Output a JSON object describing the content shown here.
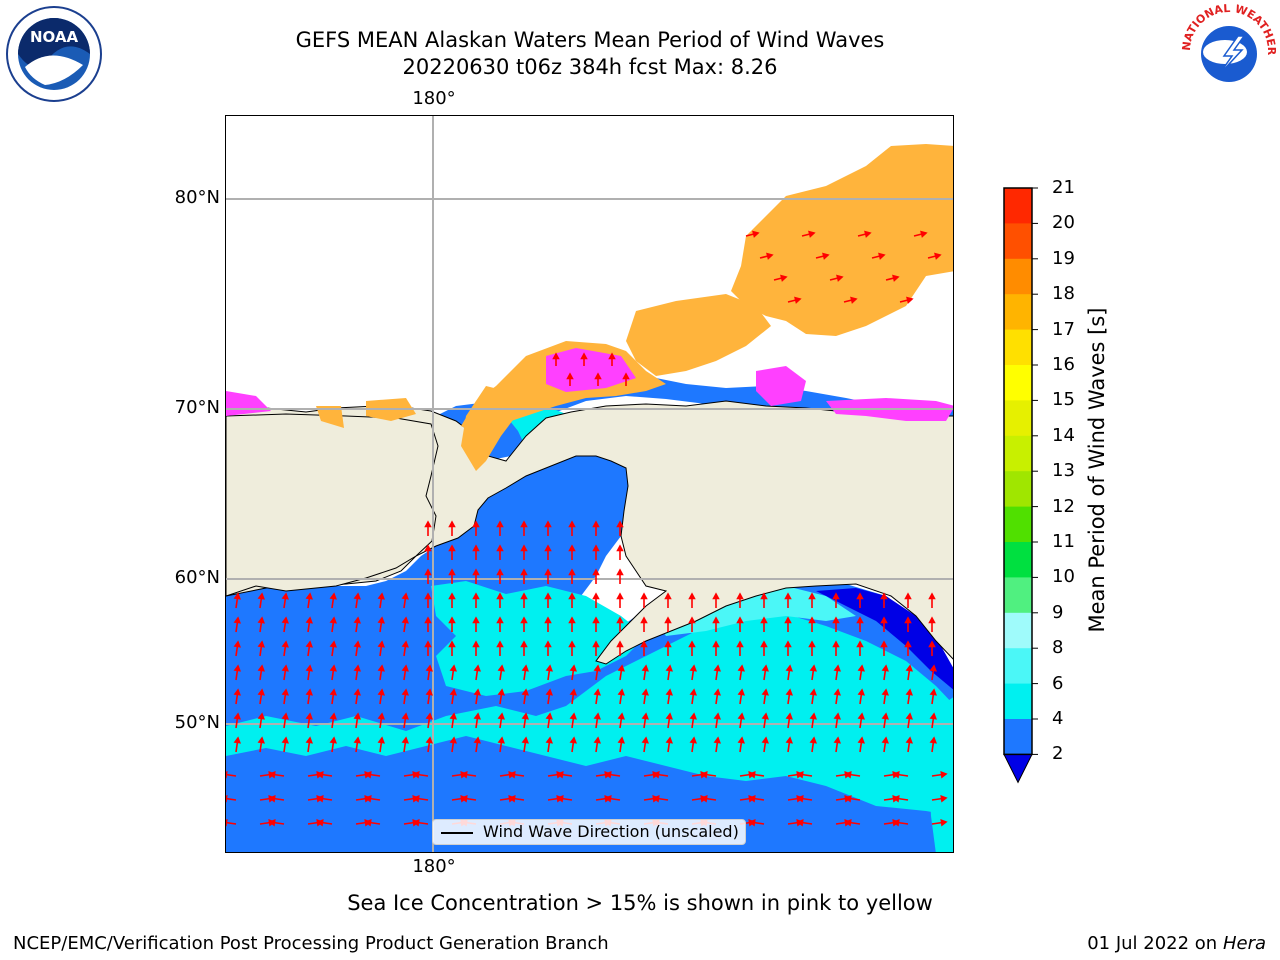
{
  "header": {
    "title_line1": "GEFS MEAN Alaskan Waters Mean Period of Wind Waves",
    "title_line2": "20220630 t06z 384h fcst   Max: 8.26"
  },
  "logos": {
    "left": "NOAA",
    "right": "NATIONAL WEATHER SERVICE"
  },
  "map": {
    "lat_labels": [
      "80°N",
      "70°N",
      "60°N",
      "50°N"
    ],
    "lon_label_top": "180°",
    "lon_label_bottom": "180°",
    "legend_label": "Wind Wave Direction (unscaled)",
    "colors": {
      "land": "#efeddc",
      "ocean_2_4": "#1e78ff",
      "ocean_4_6": "#00f0f0",
      "ocean_6_8": "#4bf7f7",
      "below_2": "#0000e6",
      "ice_pink": "#ff40ff",
      "ice_orange": "#ffb43c",
      "arrow": "#ff0000",
      "grid": "#b0b0b0"
    }
  },
  "colorbar": {
    "label": "Mean Period of Wind Waves [s]",
    "ticks": [
      "2",
      "4",
      "6",
      "8",
      "9",
      "10",
      "11",
      "12",
      "13",
      "14",
      "15",
      "16",
      "17",
      "18",
      "19",
      "20",
      "21"
    ],
    "colors": [
      "#1e78ff",
      "#00f0f0",
      "#4bf7f7",
      "#9ffbfb",
      "#50f080",
      "#00e040",
      "#50e000",
      "#a0e600",
      "#c8f000",
      "#e6f000",
      "#ffff00",
      "#ffe000",
      "#ffb400",
      "#ff8c00",
      "#ff5000",
      "#ff2800"
    ],
    "extend_color": "#0000e6"
  },
  "note": "Sea Ice Concentration > 15% is shown in pink to yellow",
  "footer": {
    "left": "NCEP/EMC/Verification Post Processing Product Generation Branch",
    "right_date": "01 Jul 2022 on ",
    "right_machine": "Hera"
  }
}
